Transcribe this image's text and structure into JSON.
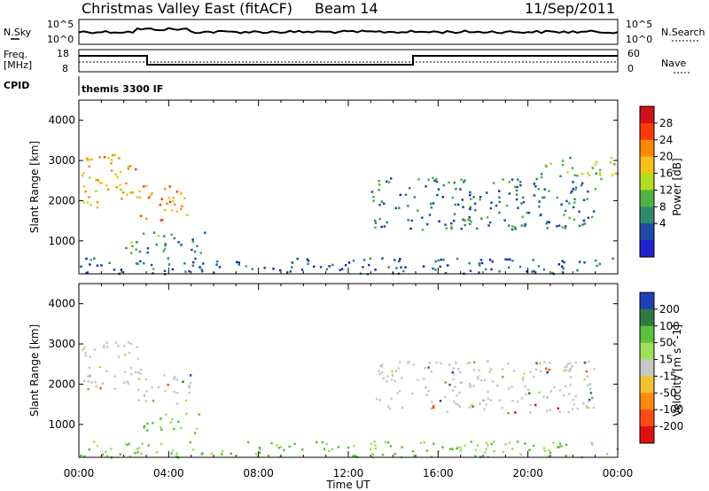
{
  "header": {
    "title": "Christmas Valley East (fitACF)",
    "beam_label": "Beam 14",
    "date": "11/Sep/2011"
  },
  "top_panels": {
    "nsky_label": "N.Sky",
    "nsky_ticks": [
      "10^5",
      "10^0"
    ],
    "nsearch_label": "N.Search",
    "nsearch_ticks": [
      "10^5",
      "10^0"
    ],
    "freq_label_1": "Freq.",
    "freq_label_2": "[MHz]",
    "freq_ticks": [
      "18",
      "8"
    ],
    "nave_label": "Nave",
    "nave_ticks": [
      "60",
      "0"
    ],
    "cpid_label": "CPID",
    "cpid_value": "themis 3300 IF"
  },
  "chart_data": [
    {
      "type": "heatmap",
      "title": "",
      "xlabel": "",
      "ylabel": "Slant Range [km]",
      "xlim": [
        "00:00",
        "24:00"
      ],
      "ylim": [
        180,
        4500
      ],
      "y_ticks": [
        1000,
        2000,
        3000,
        4000
      ],
      "x_ticks": [
        "00:00",
        "04:00",
        "08:00",
        "12:00",
        "16:00",
        "20:00",
        "00:00"
      ],
      "colorbar": {
        "label": "Power [dB]",
        "tick_labels": [
          "28",
          "24",
          "20",
          "16",
          "12",
          "8",
          "4"
        ],
        "colors": [
          "#d0101a",
          "#ff3a00",
          "#ff8a00",
          "#f6c21a",
          "#b4dc1e",
          "#4fb443",
          "#2e8a6e",
          "#1c4aa5",
          "#2020d0"
        ]
      },
      "series": [
        {
          "x_hours": [
            0.1,
            2.6
          ],
          "range_km": [
            1800,
            3200
          ],
          "level_db": 20
        },
        {
          "x_hours": [
            2.6,
            5.0
          ],
          "range_km": [
            1500,
            2400
          ],
          "level_db": 22
        },
        {
          "x_hours": [
            2.0,
            5.7
          ],
          "range_km": [
            700,
            1250
          ],
          "level_db": 10
        },
        {
          "x_hours": [
            0.0,
            24.0
          ],
          "range_km": [
            200,
            600
          ],
          "level_db": 6
        },
        {
          "x_hours": [
            13.0,
            23.0
          ],
          "range_km": [
            1300,
            2600
          ],
          "level_db": 8
        },
        {
          "x_hours": [
            20.5,
            24.0
          ],
          "range_km": [
            2500,
            3100
          ],
          "level_db": 14
        }
      ]
    },
    {
      "type": "heatmap",
      "title": "",
      "xlabel": "Time UT",
      "ylabel": "Slant Range [km]",
      "xlim": [
        "00:00",
        "24:00"
      ],
      "ylim": [
        180,
        4500
      ],
      "y_ticks": [
        1000,
        2000,
        3000,
        4000
      ],
      "x_ticks": [
        "00:00",
        "04:00",
        "08:00",
        "12:00",
        "16:00",
        "20:00",
        "00:00"
      ],
      "colorbar": {
        "label": "Velocity [m s^-1]",
        "tick_labels": [
          "200",
          "100",
          "50",
          "15",
          "-15",
          "-50",
          "-100",
          "-200"
        ],
        "colors": [
          "#2040b8",
          "#2e7d3e",
          "#5cc23a",
          "#9ee05a",
          "#c8c8c8",
          "#f2c230",
          "#ff8a10",
          "#ff4a10",
          "#e01010"
        ]
      },
      "series": [
        {
          "x_hours": [
            0.1,
            2.6
          ],
          "range_km": [
            1900,
            3100
          ],
          "velocity": 0
        },
        {
          "x_hours": [
            2.6,
            5.0
          ],
          "range_km": [
            1500,
            2400
          ],
          "velocity": 0
        },
        {
          "x_hours": [
            2.8,
            5.5
          ],
          "range_km": [
            800,
            1300
          ],
          "velocity": 50
        },
        {
          "x_hours": [
            0.0,
            24.0
          ],
          "range_km": [
            200,
            600
          ],
          "velocity": 30
        },
        {
          "x_hours": [
            13.0,
            23.0
          ],
          "range_km": [
            1300,
            2600
          ],
          "velocity": 0
        }
      ]
    }
  ]
}
